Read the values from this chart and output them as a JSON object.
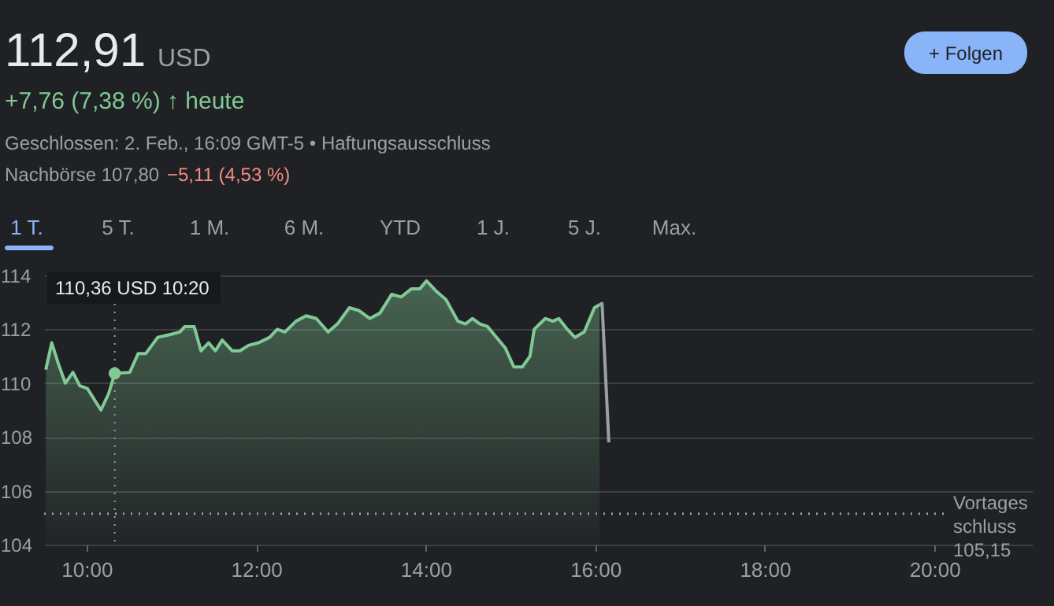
{
  "chart_data": {
    "type": "area",
    "title": "112,91",
    "annotations": [
      "USD",
      "+7,76 (7,38 %) ↑ heute",
      "Geschlossen: 2. Feb., 16:09 GMT-5 • Haftungsausschluss",
      "Nachbörse 107,80",
      "−5,11 (4,53 %)",
      "+ Folgen",
      "1 T.",
      "5 T.",
      "1 M.",
      "6 M.",
      "YTD",
      "1 J.",
      "5 J.",
      "Max.",
      "110,36 USD  10:20"
    ],
    "series": [
      {
        "color": "#81c995",
        "x": [
          9.52,
          9.59,
          9.67,
          9.75,
          9.84,
          9.92,
          10.01,
          10.17,
          10.26,
          10.333,
          10.51,
          10.61,
          10.7,
          10.84,
          10.98,
          11.1,
          11.16,
          11.27,
          11.35,
          11.44,
          11.52,
          11.6,
          11.72,
          11.81,
          11.91,
          12.03,
          12.16,
          12.25,
          12.34,
          12.47,
          12.59,
          12.71,
          12.85,
          12.96,
          13.1,
          13.21,
          13.34,
          13.46,
          13.6,
          13.71,
          13.83,
          13.93,
          14.01,
          14.13,
          14.24,
          14.38,
          14.47,
          14.55,
          14.64,
          14.73,
          14.94,
          15.04,
          15.14,
          15.23,
          15.28,
          15.41,
          15.5,
          15.57,
          15.67,
          15.76,
          15.87,
          15.99,
          16.05
        ],
        "values": [
          110.5,
          111.5,
          110.7,
          110.0,
          110.4,
          109.9,
          109.8,
          109.0,
          109.6,
          110.36,
          110.4,
          111.1,
          111.1,
          111.7,
          111.8,
          111.9,
          112.1,
          112.1,
          111.2,
          111.5,
          111.2,
          111.6,
          111.2,
          111.2,
          111.4,
          111.5,
          111.7,
          112.0,
          111.9,
          112.3,
          112.5,
          112.4,
          111.9,
          112.2,
          112.8,
          112.7,
          112.4,
          112.6,
          113.3,
          113.2,
          113.5,
          113.5,
          113.8,
          113.4,
          113.1,
          112.3,
          112.2,
          112.4,
          112.2,
          112.1,
          111.3,
          110.6,
          110.6,
          111.0,
          112.0,
          112.4,
          112.3,
          112.4,
          112.0,
          111.7,
          111.9,
          112.8,
          112.91
        ]
      },
      {
        "type": "line",
        "color": "#9aa0a6",
        "x": [
          16.05,
          16.08,
          16.16
        ],
        "values": [
          112.91,
          112.96,
          107.8
        ]
      }
    ],
    "xlim": [
      9.5,
      21.15
    ],
    "xticks": [
      {
        "value": 10,
        "label": "10:00"
      },
      {
        "value": 12,
        "label": "12:00"
      },
      {
        "value": 14,
        "label": "14:00"
      },
      {
        "value": 16,
        "label": "16:00"
      },
      {
        "value": 18,
        "label": "18:00"
      },
      {
        "value": 20,
        "label": "20:00"
      }
    ],
    "ylim": [
      104,
      114
    ],
    "yticks": [
      104,
      106,
      108,
      110,
      112,
      114
    ],
    "ref_lines": [
      {
        "axis": "y",
        "value": 105.15,
        "label": "Vortages\nschluss\n105,15",
        "line_style": "dotted",
        "color": "#9aa0a6"
      },
      {
        "axis": "x",
        "value": 10.333,
        "line_style": "dotted",
        "color": "#9aa0a6"
      }
    ],
    "grid": "y"
  }
}
